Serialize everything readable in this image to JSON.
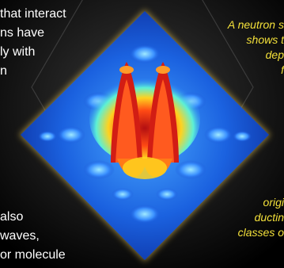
{
  "left_paragraph": {
    "lines": [
      "that interact",
      "ns have",
      "ly with",
      "n"
    ]
  },
  "right_caption": {
    "lines": [
      "A neutron s",
      "shows t",
      "dep",
      "f"
    ]
  },
  "lower_right_caption": {
    "lines": [
      "origi",
      "ductin",
      "classes o"
    ]
  },
  "lower_left_paragraph": {
    "lines": [
      "also",
      "waves,",
      "or molecule"
    ]
  },
  "colors": {
    "background": "#000000",
    "body_text": "#ffffff",
    "caption_text": "#f3e03a",
    "surface_low": "#1440c8",
    "surface_high": "#e0261a",
    "glow": "#f6d35a"
  }
}
